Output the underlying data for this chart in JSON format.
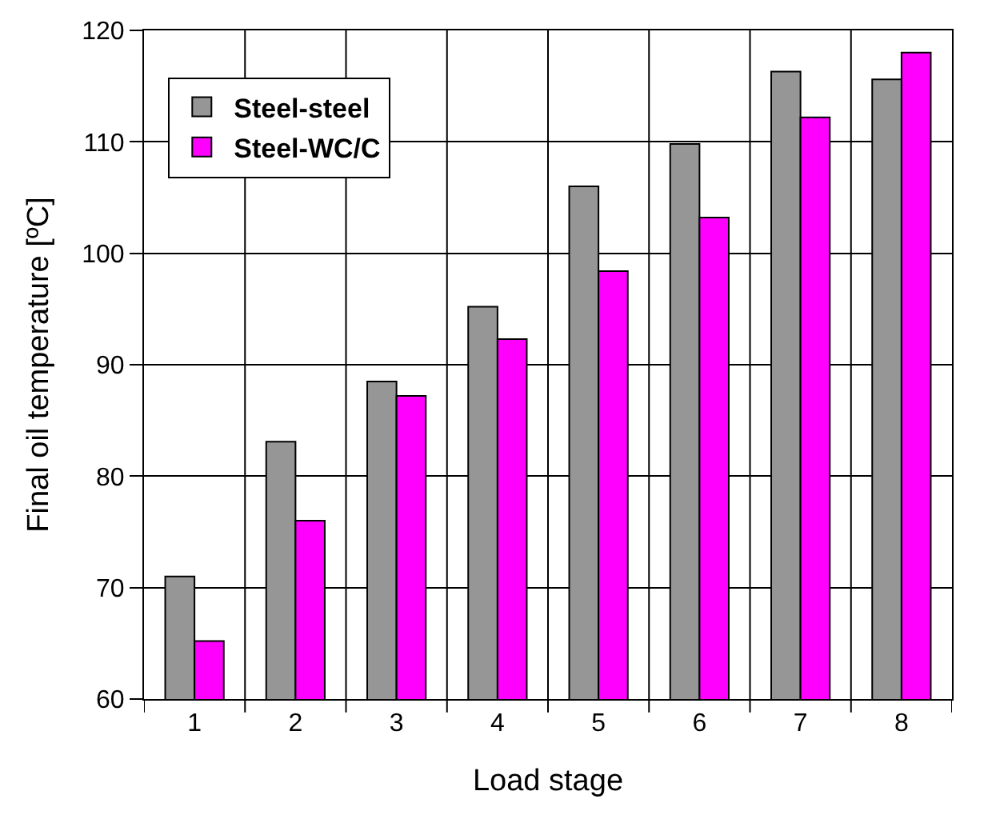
{
  "chart_data": {
    "type": "bar",
    "xlabel": "Load stage",
    "ylabel": "Final oil temperature [ºC]",
    "categories": [
      "1",
      "2",
      "3",
      "4",
      "5",
      "6",
      "7",
      "8"
    ],
    "series": [
      {
        "name": "Steel-steel",
        "color": "#969696",
        "values": [
          71,
          83.1,
          88.5,
          95.2,
          106,
          109.8,
          116.3,
          115.6
        ]
      },
      {
        "name": "Steel-WC/C",
        "color": "#ff00ff",
        "values": [
          65.2,
          76,
          87.2,
          92.3,
          98.4,
          103.2,
          112.2,
          118
        ]
      }
    ],
    "ylim": [
      60,
      120
    ],
    "yticks": [
      60,
      70,
      80,
      90,
      100,
      110,
      120
    ],
    "grid": true,
    "legend": "top left"
  }
}
